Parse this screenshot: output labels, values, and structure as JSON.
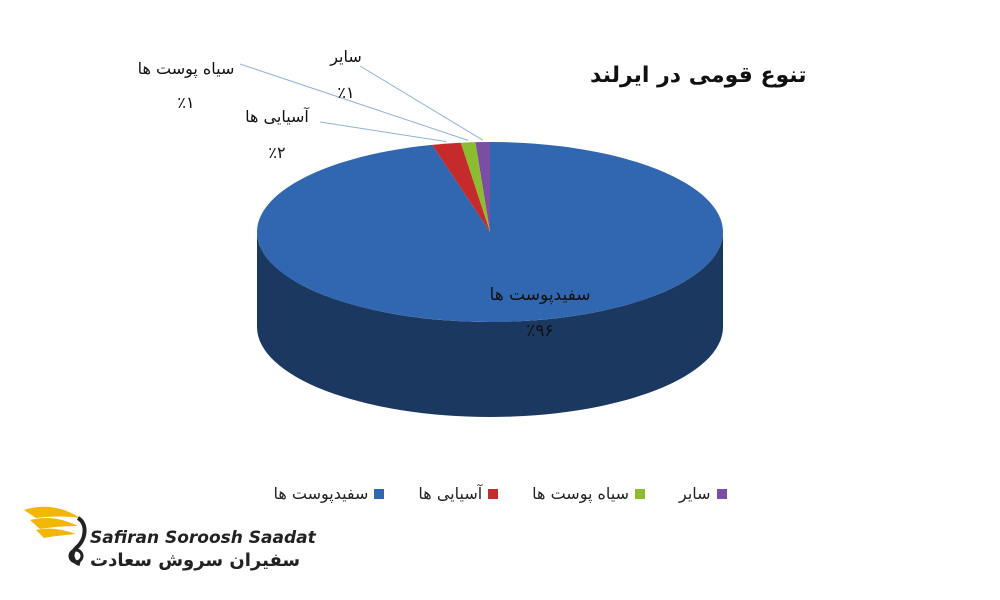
{
  "chart_data": {
    "type": "pie",
    "title": "تنوع قومی در ایرلند",
    "categories": [
      "سفیدپوست ها",
      "آسیایی ها",
      "سیاه پوست ها",
      "سایر"
    ],
    "values": [
      96,
      2,
      1,
      1
    ],
    "value_labels": [
      "٪۹۶",
      "٪۲",
      "٪۱",
      "٪۱"
    ],
    "colors": [
      "#3166b0",
      "#c62b2b",
      "#8cbd2f",
      "#7a4fa3"
    ],
    "legend_position": "bottom",
    "three_d": true
  },
  "logo": {
    "name_en": "Safiran Soroosh Saadat",
    "name_fa": "سفیران سروش سعادت"
  }
}
